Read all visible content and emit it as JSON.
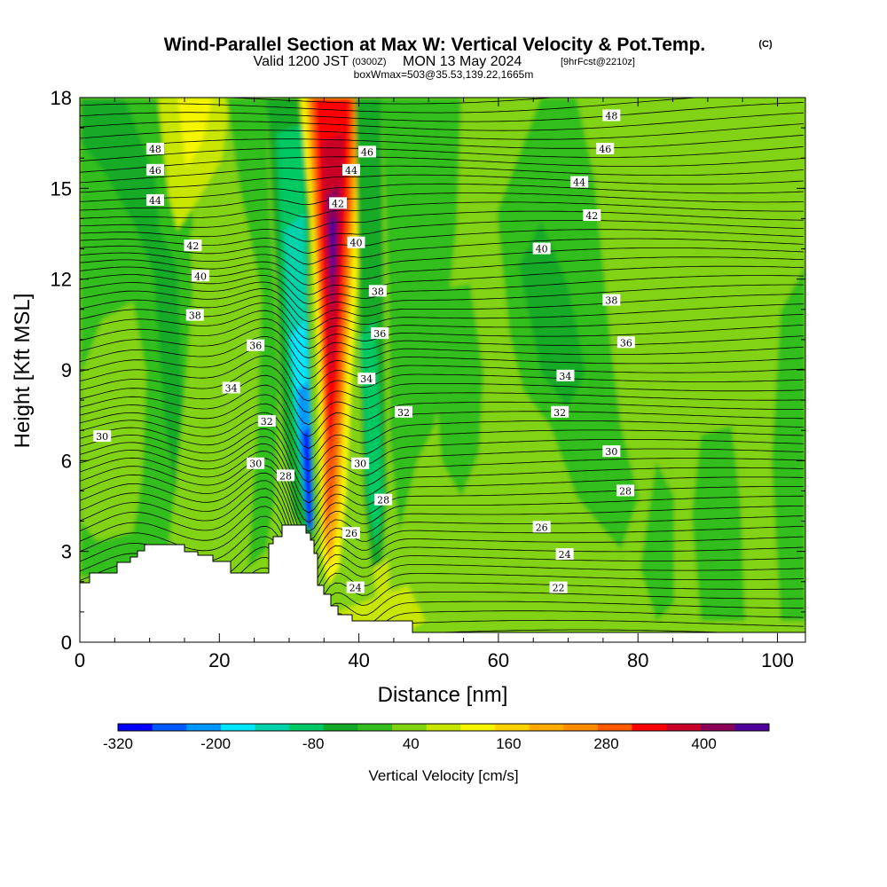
{
  "title": {
    "main": "Wind-Parallel Section at Max W: Vertical Velocity & Pot.Temp.",
    "copyright": "(C)",
    "valid_prefix": "Valid 1200 JST",
    "valid_utc": "(0300Z)",
    "valid_date": "MON 13 May 2024",
    "forecast": "[9hrFcst@2210z]",
    "box": "boxWmax=503@35.53,139.22,1665m"
  },
  "colorbar": {
    "label": "Vertical Velocity [cm/s]",
    "tick_labels": [
      "-320",
      "-200",
      "-80",
      "40",
      "160",
      "280",
      "400"
    ],
    "colors": [
      "#0000ff",
      "#005aff",
      "#0096ff",
      "#00e6ff",
      "#00d2aa",
      "#00c864",
      "#14aa28",
      "#32be1e",
      "#82d214",
      "#c8e600",
      "#f5f500",
      "#ffd200",
      "#ffaa00",
      "#ff8c00",
      "#ff5a00",
      "#ff0000",
      "#c80028",
      "#8c005a",
      "#50009b"
    ]
  },
  "chart_data": {
    "type": "heatmap",
    "title": "Wind-Parallel Section at Max W: Vertical Velocity & Pot.Temp.",
    "xlabel": "Distance [nm]",
    "ylabel": "Height [Kft MSL]",
    "xlim": [
      0,
      104
    ],
    "ylim": [
      0,
      18
    ],
    "x_ticks": [
      0,
      20,
      40,
      60,
      80,
      100
    ],
    "y_ticks": [
      0,
      3,
      6,
      9,
      12,
      15,
      18
    ],
    "x_tick_labels": [
      "0",
      "20",
      "40",
      "60",
      "80",
      "100"
    ],
    "y_tick_labels": [
      "0",
      "3",
      "6",
      "9",
      "12",
      "15",
      "18"
    ],
    "colorbar_range_cm_s": [
      -320,
      480
    ],
    "colorbar_step_cm_s": 40,
    "updraft_max_cm_s": 503,
    "contour_labels": [
      {
        "text": "48",
        "x": 10.8,
        "y": 16.3
      },
      {
        "text": "46",
        "x": 10.8,
        "y": 15.6
      },
      {
        "text": "44",
        "x": 10.8,
        "y": 14.6
      },
      {
        "text": "42",
        "x": 16.2,
        "y": 13.1
      },
      {
        "text": "40",
        "x": 17.3,
        "y": 12.1
      },
      {
        "text": "38",
        "x": 16.5,
        "y": 10.8
      },
      {
        "text": "36",
        "x": 25.2,
        "y": 9.8
      },
      {
        "text": "34",
        "x": 21.7,
        "y": 8.4
      },
      {
        "text": "32",
        "x": 26.8,
        "y": 7.3
      },
      {
        "text": "30",
        "x": 25.2,
        "y": 5.9
      },
      {
        "text": "28",
        "x": 29.5,
        "y": 5.5
      },
      {
        "text": "30",
        "x": 3.2,
        "y": 6.8
      },
      {
        "text": "46",
        "x": 41.2,
        "y": 16.2
      },
      {
        "text": "44",
        "x": 38.9,
        "y": 15.6
      },
      {
        "text": "42",
        "x": 37.0,
        "y": 14.5
      },
      {
        "text": "40",
        "x": 39.6,
        "y": 13.2
      },
      {
        "text": "38",
        "x": 42.7,
        "y": 11.6
      },
      {
        "text": "36",
        "x": 43.0,
        "y": 10.2
      },
      {
        "text": "34",
        "x": 41.1,
        "y": 8.7
      },
      {
        "text": "32",
        "x": 46.4,
        "y": 7.6
      },
      {
        "text": "30",
        "x": 40.2,
        "y": 5.9
      },
      {
        "text": "28",
        "x": 43.5,
        "y": 4.7
      },
      {
        "text": "26",
        "x": 38.9,
        "y": 3.6
      },
      {
        "text": "24",
        "x": 39.5,
        "y": 1.8
      },
      {
        "text": "48",
        "x": 76.2,
        "y": 17.4
      },
      {
        "text": "46",
        "x": 75.3,
        "y": 16.3
      },
      {
        "text": "44",
        "x": 71.6,
        "y": 15.2
      },
      {
        "text": "42",
        "x": 73.4,
        "y": 14.1
      },
      {
        "text": "40",
        "x": 66.2,
        "y": 13.0
      },
      {
        "text": "38",
        "x": 76.2,
        "y": 11.3
      },
      {
        "text": "36",
        "x": 78.3,
        "y": 9.9
      },
      {
        "text": "34",
        "x": 69.6,
        "y": 8.8
      },
      {
        "text": "32",
        "x": 68.8,
        "y": 7.6
      },
      {
        "text": "30",
        "x": 76.2,
        "y": 6.3
      },
      {
        "text": "28",
        "x": 78.2,
        "y": 5.0
      },
      {
        "text": "26",
        "x": 66.2,
        "y": 3.8
      },
      {
        "text": "24",
        "x": 69.5,
        "y": 2.9
      },
      {
        "text": "22",
        "x": 68.6,
        "y": 1.8
      }
    ]
  }
}
